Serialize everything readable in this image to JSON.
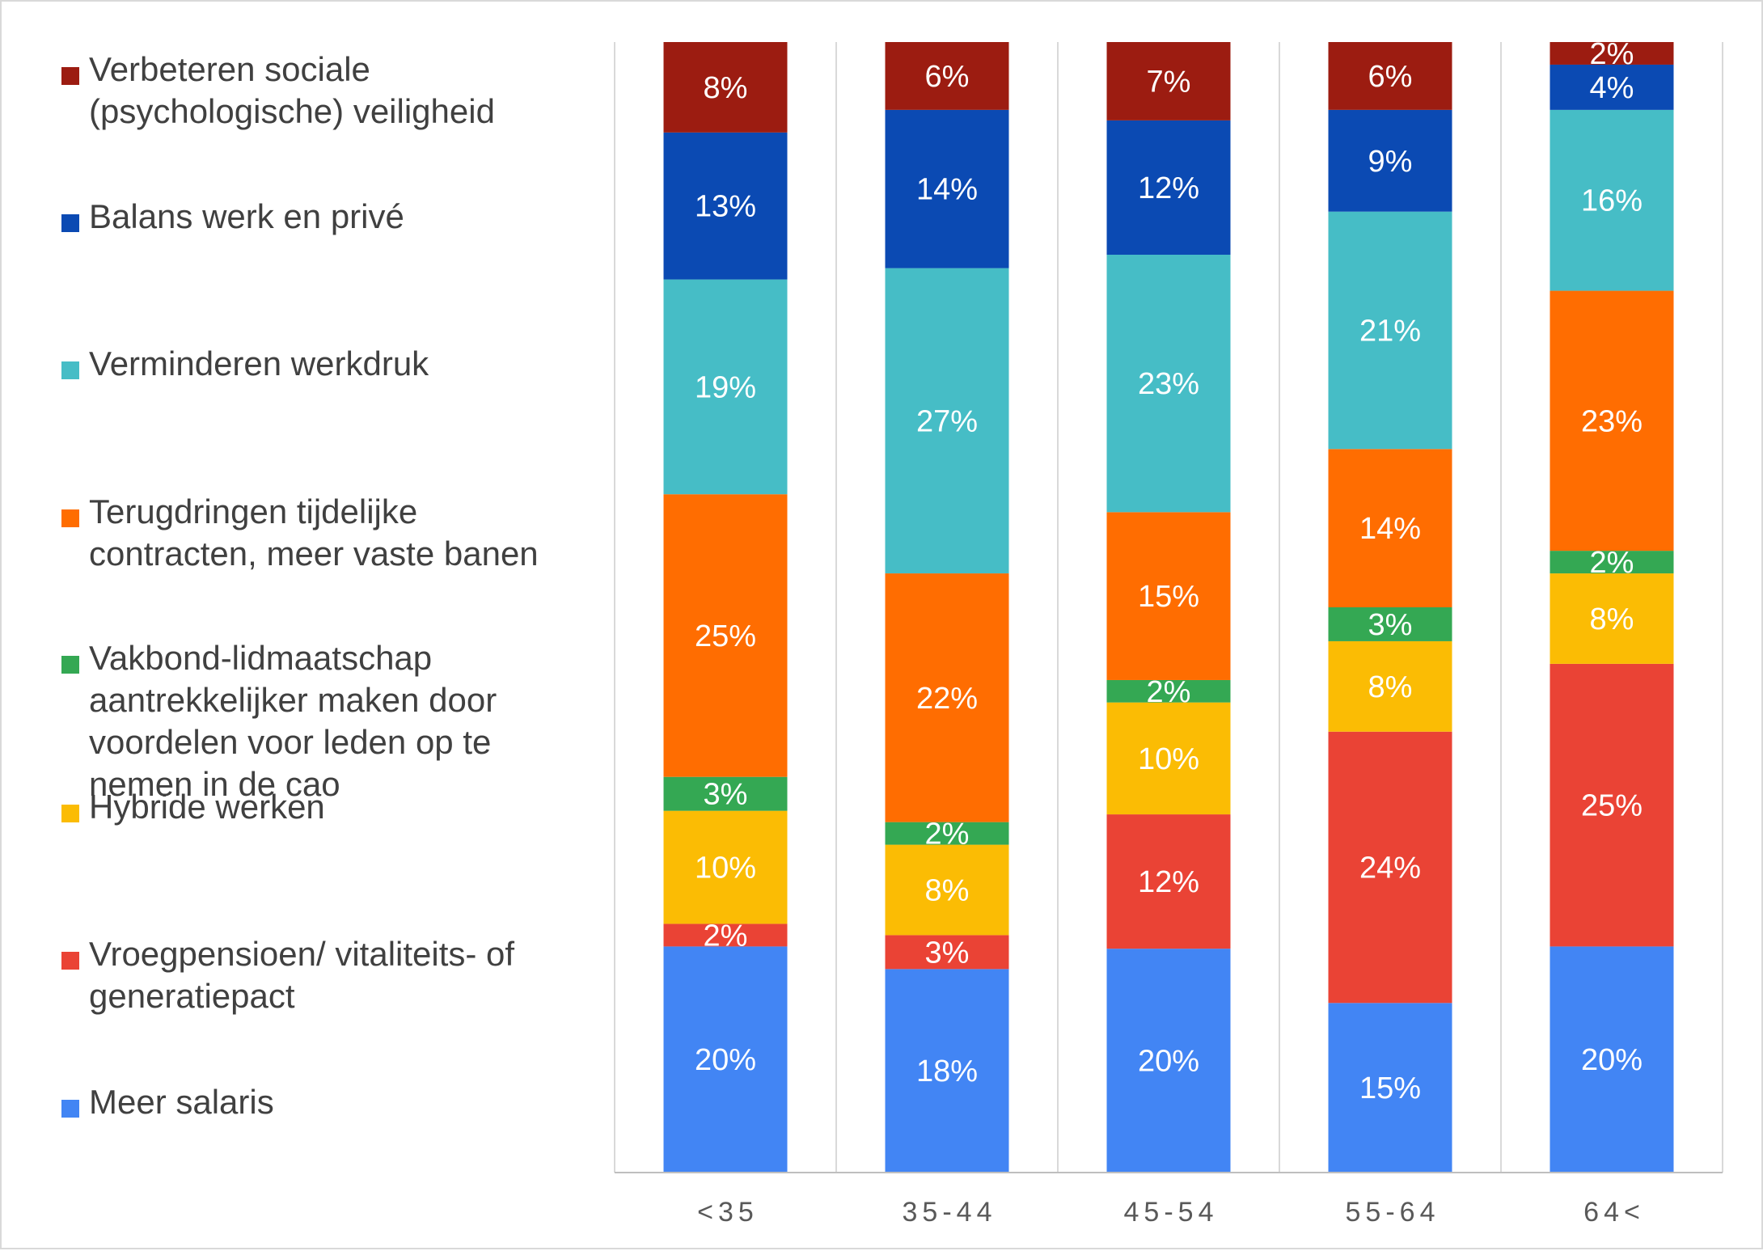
{
  "chart_data": {
    "type": "bar",
    "stacked": true,
    "categories": [
      "<35",
      "35-44",
      "45-54",
      "55-64",
      "64<"
    ],
    "series": [
      {
        "name": "Meer salaris",
        "color": "#4285f4",
        "values": [
          20,
          18,
          20,
          15,
          20
        ],
        "labels": [
          "20%",
          "18%",
          "20%",
          "15%",
          "20%"
        ]
      },
      {
        "name": "Vroegpensioen/ vitaliteits- of generatiepact",
        "color": "#ea4335",
        "values": [
          2,
          3,
          12,
          24,
          25
        ],
        "labels": [
          "2%",
          "3%",
          "12%",
          "24%",
          "25%"
        ]
      },
      {
        "name": "Hybride werken",
        "color": "#fbbc04",
        "values": [
          10,
          8,
          10,
          8,
          8
        ],
        "labels": [
          "10%",
          "8%",
          "10%",
          "8%",
          "8%"
        ]
      },
      {
        "name": "Vakbond-lidmaatschap aantrekkelijker maken door voordelen voor leden op te nemen in de cao",
        "color": "#34a853",
        "values": [
          3,
          2,
          2,
          3,
          2
        ],
        "labels": [
          "3%",
          "2%",
          "2%",
          "3%",
          "2%"
        ]
      },
      {
        "name": "Terugdringen tijdelijke contracten, meer vaste banen",
        "color": "#ff6d01",
        "values": [
          25,
          22,
          15,
          14,
          23
        ],
        "labels": [
          "25%",
          "22%",
          "15%",
          "14%",
          "23%"
        ]
      },
      {
        "name": "Verminderen werkdruk",
        "color": "#46bdc6",
        "values": [
          19,
          27,
          23,
          21,
          16
        ],
        "labels": [
          "19%",
          "27%",
          "23%",
          "21%",
          "16%"
        ]
      },
      {
        "name": "Balans werk en privé",
        "color": "#0b4ab3",
        "values": [
          13,
          14,
          12,
          9,
          4
        ],
        "labels": [
          "13%",
          "14%",
          "12%",
          "9%",
          "4%"
        ]
      },
      {
        "name": "Verbeteren sociale (psychologische) veiligheid",
        "color": "#9c1c11",
        "values": [
          8,
          6,
          7,
          6,
          2
        ],
        "labels": [
          "8%",
          "6%",
          "7%",
          "6%",
          "2%"
        ]
      }
    ],
    "legend": {
      "position": "left",
      "entries": [
        {
          "lines": [
            "Verbeteren sociale",
            "(psychologische) veiligheid"
          ],
          "color": "#9c1c11"
        },
        {
          "lines": [
            "Balans werk en privé"
          ],
          "color": "#0b4ab3"
        },
        {
          "lines": [
            "Verminderen werkdruk"
          ],
          "color": "#46bdc6"
        },
        {
          "lines": [
            "Terugdringen tijdelijke",
            "contracten, meer vaste banen"
          ],
          "color": "#ff6d01"
        },
        {
          "lines": [
            "Vakbond-lidmaatschap",
            "aantrekkelijker maken door",
            "voordelen voor leden op te",
            "nemen in de cao"
          ],
          "color": "#34a853"
        },
        {
          "lines": [
            "Hybride werken"
          ],
          "color": "#fbbc04"
        },
        {
          "lines": [
            "Vroegpensioen/ vitaliteits- of",
            "generatiepact"
          ],
          "color": "#ea4335"
        },
        {
          "lines": [
            "Meer salaris"
          ],
          "color": "#4285f4"
        }
      ]
    },
    "grid": {
      "vertical": true,
      "color": "#d9d9d9"
    },
    "axis_color": "#bfbfbf",
    "title": "",
    "xlabel": "",
    "ylabel": ""
  }
}
